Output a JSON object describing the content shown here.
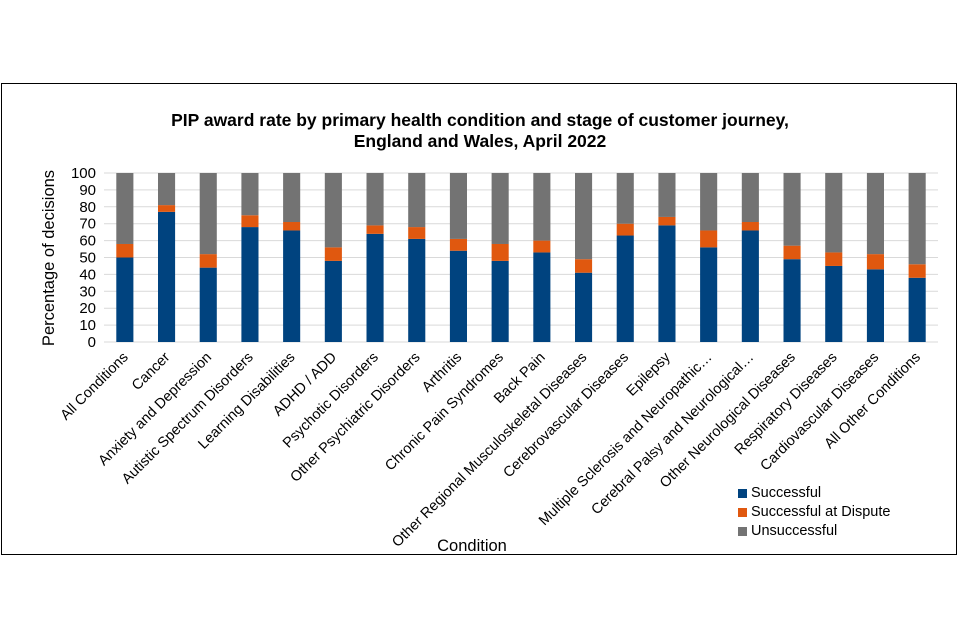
{
  "chart_data": {
    "type": "bar",
    "stacked": true,
    "title": "PIP award rate by primary health condition and stage of customer journey, England and Wales, April 2022",
    "title_lines": [
      "PIP award rate by primary health condition and stage of customer journey,",
      "England and Wales, April 2022"
    ],
    "xlabel": "Condition",
    "ylabel": "Percentage of decisions",
    "ylim": [
      0,
      100
    ],
    "yticks": [
      0,
      10,
      20,
      30,
      40,
      50,
      60,
      70,
      80,
      90,
      100
    ],
    "grid": true,
    "legend_position": "bottom-right",
    "categories": [
      "All Conditions",
      "Cancer",
      "Anxiety and Depression",
      "Autistic Spectrum Disorders",
      "Learning Disabilities",
      "ADHD / ADD",
      "Psychotic Disorders",
      "Other Psychiatric Disorders",
      "Arthritis",
      "Chronic Pain Syndromes",
      "Back Pain",
      "Other Regional Musculoskeletal Diseases",
      "Cerebrovascular Diseases",
      "Epilepsy",
      "Multiple Sclerosis and Neuropathic…",
      "Cerebral Palsy and Neurological…",
      "Other Neurological Diseases",
      "Respiratory Diseases",
      "Cardiovascular Diseases",
      "All Other Conditions"
    ],
    "series": [
      {
        "name": "Successful",
        "color": "#00437F",
        "values": [
          50,
          77,
          44,
          68,
          66,
          48,
          64,
          61,
          54,
          48,
          53,
          41,
          63,
          69,
          56,
          66,
          49,
          45,
          43,
          38
        ]
      },
      {
        "name": "Successful at Dispute",
        "color": "#E0580F",
        "values": [
          8,
          4,
          8,
          7,
          5,
          8,
          5,
          7,
          7,
          10,
          7,
          8,
          7,
          5,
          10,
          5,
          8,
          8,
          9,
          8
        ]
      },
      {
        "name": "Unsuccessful",
        "color": "#737373",
        "values": [
          42,
          19,
          48,
          25,
          29,
          44,
          31,
          32,
          39,
          42,
          40,
          51,
          30,
          26,
          34,
          29,
          43,
          47,
          48,
          54
        ]
      }
    ]
  }
}
